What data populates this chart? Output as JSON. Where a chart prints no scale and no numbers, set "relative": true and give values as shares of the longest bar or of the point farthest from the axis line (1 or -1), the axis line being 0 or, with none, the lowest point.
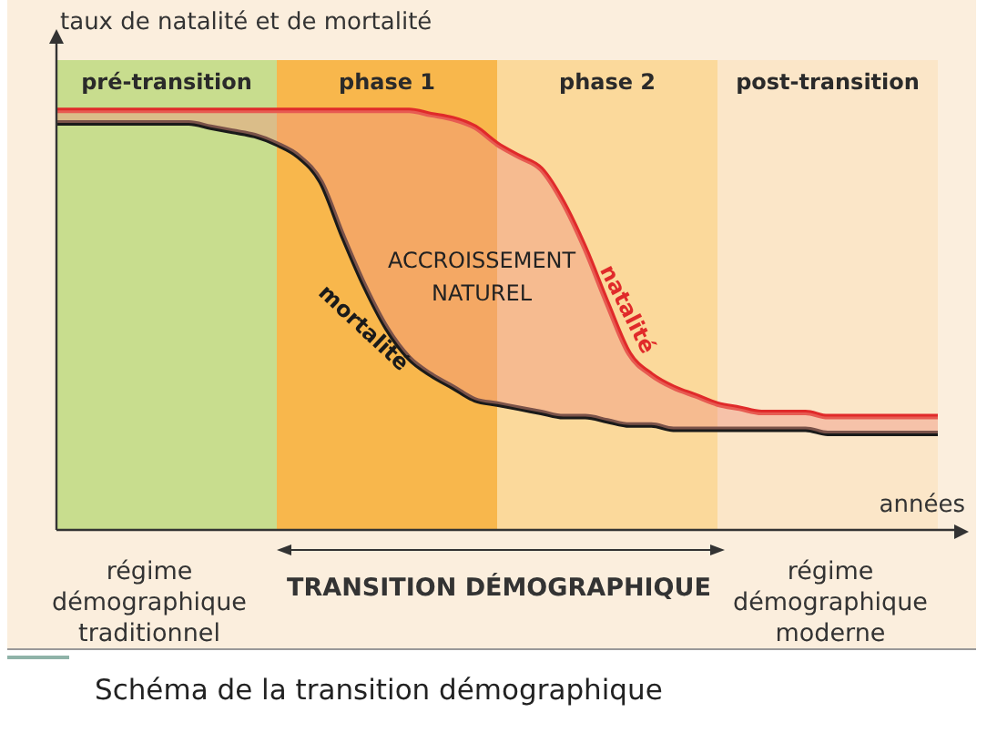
{
  "chart_data": {
    "type": "line",
    "title": "Schéma de la transition démographique",
    "ylabel": "taux de natalité et de mortalité",
    "xlabel": "années",
    "relative": true,
    "legend": false,
    "marker": "none",
    "line_style": "solid",
    "categories": [
      null,
      null,
      null,
      null,
      null,
      null,
      null,
      null,
      null,
      null,
      null,
      null,
      null,
      null,
      null,
      null,
      null,
      null,
      null,
      null,
      null,
      null,
      null,
      null,
      null,
      null,
      null,
      null,
      null,
      null,
      null,
      null,
      null,
      null,
      null,
      null,
      null,
      null,
      null,
      null,
      null
    ],
    "series": [
      {
        "name": "natalité",
        "color": "#e02a2a",
        "values": [
          1,
          1,
          1,
          1,
          1,
          1,
          1,
          1,
          1,
          1,
          1,
          1,
          1,
          1,
          1,
          1,
          1,
          0.99,
          0.98,
          0.96,
          0.92,
          0.89,
          0.86,
          0.78,
          0.67,
          0.54,
          0.42,
          0.37,
          0.34,
          0.32,
          0.3,
          0.29,
          0.28,
          0.28,
          0.28,
          0.27,
          0.27,
          0.27,
          0.27,
          0.27,
          0.27
        ],
        "upper": [
          1,
          1,
          1,
          1,
          1,
          1,
          1,
          1,
          1,
          1,
          1,
          1,
          1,
          1,
          1,
          1,
          1,
          0.99,
          0.98,
          0.96,
          0.92,
          0.89,
          0.86,
          0.78,
          0.67,
          0.54,
          0.42,
          0.37,
          0.34,
          0.32,
          0.3,
          0.29,
          0.28,
          0.28,
          0.28,
          0.27,
          0.27,
          0.27,
          0.27,
          0.27,
          0.27
        ],
        "lower": [
          0.97,
          0.97,
          0.97,
          0.97,
          0.97,
          0.97,
          0.97,
          0.96,
          0.95,
          0.94,
          0.92,
          0.89,
          0.83,
          0.7,
          0.58,
          0.48,
          0.41,
          0.37,
          0.34,
          0.31,
          0.3,
          0.29,
          0.28,
          0.27,
          0.27,
          0.26,
          0.25,
          0.25,
          0.24,
          0.24,
          0.24,
          0.24,
          0.24,
          0.24,
          0.24,
          0.23,
          0.23,
          0.23,
          0.23,
          0.23,
          0.23
        ]
      },
      {
        "name": "mortalité",
        "color": "#1a1a1a",
        "values": [
          0.97,
          0.97,
          0.97,
          0.97,
          0.97,
          0.97,
          0.97,
          0.96,
          0.95,
          0.94,
          0.92,
          0.89,
          0.83,
          0.7,
          0.58,
          0.48,
          0.41,
          0.37,
          0.34,
          0.31,
          0.3,
          0.29,
          0.28,
          0.27,
          0.27,
          0.26,
          0.25,
          0.25,
          0.24,
          0.24,
          0.24,
          0.24,
          0.24,
          0.24,
          0.24,
          0.23,
          0.23,
          0.23,
          0.23,
          0.23,
          0.23
        ]
      }
    ],
    "annotations": [
      "pré-transition",
      "phase 1",
      "phase 2",
      "post-transition",
      "ACCROISSEMENT NATUREL",
      "régime démographique traditionnel",
      "TRANSITION DÉMOGRAPHIQUE",
      "régime démographique moderne"
    ]
  }
}
